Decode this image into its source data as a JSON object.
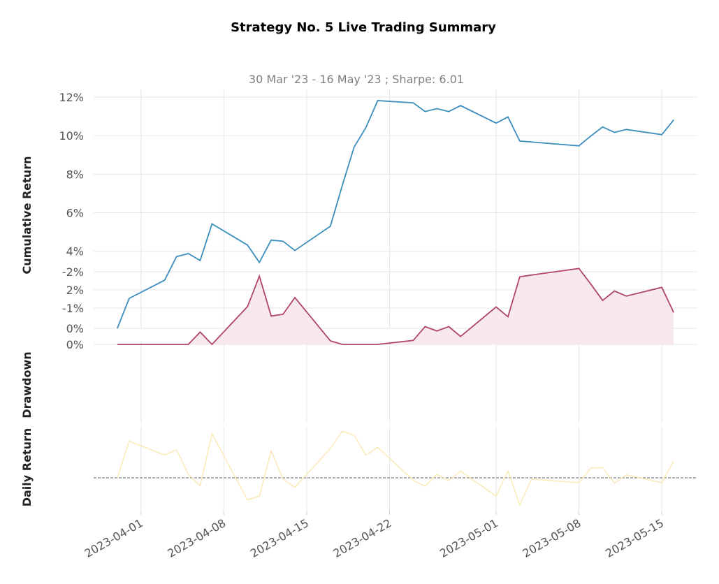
{
  "title": "Strategy No. 5 Live Trading Summary",
  "subtitle": "30 Mar '23 - 16 May '23 ;  Sharpe: 6.01",
  "colors": {
    "cumulative": "#3a8dbd",
    "drawdown": "#b04563",
    "drawdown_fill": "#f6e8ec",
    "daily": "#fbe5a6",
    "zero_line": "#808080"
  },
  "chart_data": [
    {
      "type": "line",
      "ylabel": "Cumulative Return",
      "yticks": [
        "0%",
        "2%",
        "4%",
        "6%",
        "8%",
        "10%",
        "12%"
      ],
      "ylim": [
        0,
        12.4
      ],
      "xticks": [
        "2023-04-01",
        "2023-04-08",
        "2023-04-15",
        "2023-04-22",
        "2023-05-01",
        "2023-05-08",
        "2023-05-15"
      ],
      "grid": true,
      "series": [
        {
          "x": [
            "2023-03-30",
            "2023-03-31",
            "2023-04-03",
            "2023-04-04",
            "2023-04-05",
            "2023-04-06",
            "2023-04-07",
            "2023-04-10",
            "2023-04-11",
            "2023-04-12",
            "2023-04-13",
            "2023-04-14",
            "2023-04-17",
            "2023-04-18",
            "2023-04-19",
            "2023-04-20",
            "2023-04-21",
            "2023-04-24",
            "2023-04-25",
            "2023-04-26",
            "2023-04-27",
            "2023-04-28",
            "2023-05-01",
            "2023-05-02",
            "2023-05-03",
            "2023-05-04",
            "2023-05-08",
            "2023-05-09",
            "2023-05-10",
            "2023-05-11",
            "2023-05-12",
            "2023-05-15",
            "2023-05-16"
          ],
          "y": [
            0.0,
            1.55,
            2.5,
            3.72,
            3.88,
            3.52,
            5.42,
            4.32,
            3.42,
            4.58,
            4.52,
            4.04,
            5.3,
            7.4,
            9.4,
            10.42,
            11.82,
            11.7,
            11.25,
            11.4,
            11.25,
            11.56,
            10.65,
            10.97,
            9.72,
            9.67,
            9.47,
            9.98,
            10.45,
            10.17,
            10.32,
            10.05,
            10.82
          ]
        }
      ]
    },
    {
      "type": "area",
      "ylabel": "Drawdown",
      "yticks": [
        "0%",
        "-1%",
        "-2%"
      ],
      "ylim": [
        -2.2,
        0
      ],
      "grid": true,
      "series": [
        {
          "x": [
            "2023-03-30",
            "2023-03-31",
            "2023-04-03",
            "2023-04-04",
            "2023-04-05",
            "2023-04-06",
            "2023-04-07",
            "2023-04-10",
            "2023-04-11",
            "2023-04-12",
            "2023-04-13",
            "2023-04-14",
            "2023-04-17",
            "2023-04-18",
            "2023-04-19",
            "2023-04-20",
            "2023-04-21",
            "2023-04-24",
            "2023-04-25",
            "2023-04-26",
            "2023-04-27",
            "2023-04-28",
            "2023-05-01",
            "2023-05-02",
            "2023-05-03",
            "2023-05-04",
            "2023-05-08",
            "2023-05-09",
            "2023-05-10",
            "2023-05-11",
            "2023-05-12",
            "2023-05-15",
            "2023-05-16"
          ],
          "y": [
            0.0,
            0.0,
            0.0,
            0.0,
            0.0,
            -0.34,
            0.0,
            -1.04,
            -1.88,
            -0.78,
            -0.83,
            -1.29,
            -0.1,
            0.0,
            0.0,
            0.0,
            0.0,
            -0.11,
            -0.49,
            -0.37,
            -0.49,
            -0.22,
            -1.03,
            -0.76,
            -1.86,
            -1.91,
            -2.09,
            -1.66,
            -1.21,
            -1.47,
            -1.33,
            -1.57,
            -0.88
          ]
        }
      ]
    },
    {
      "type": "line",
      "ylabel": "Daily Return",
      "ylim": [
        -0.9,
        1.6
      ],
      "zero_line": true,
      "grid": true,
      "series": [
        {
          "x": [
            "2023-03-30",
            "2023-03-31",
            "2023-04-03",
            "2023-04-04",
            "2023-04-05",
            "2023-04-06",
            "2023-04-07",
            "2023-04-10",
            "2023-04-11",
            "2023-04-12",
            "2023-04-13",
            "2023-04-14",
            "2023-04-17",
            "2023-04-18",
            "2023-04-19",
            "2023-04-20",
            "2023-04-21",
            "2023-04-24",
            "2023-04-25",
            "2023-04-26",
            "2023-04-27",
            "2023-04-28",
            "2023-05-01",
            "2023-05-02",
            "2023-05-03",
            "2023-05-04",
            "2023-05-08",
            "2023-05-09",
            "2023-05-10",
            "2023-05-11",
            "2023-05-12",
            "2023-05-15",
            "2023-05-16"
          ],
          "y": [
            0.0,
            1.5,
            0.93,
            1.15,
            0.15,
            -0.33,
            1.8,
            -0.9,
            -0.76,
            1.1,
            -0.05,
            -0.39,
            1.2,
            1.9,
            1.75,
            0.92,
            1.25,
            -0.1,
            -0.35,
            0.14,
            -0.12,
            0.27,
            -0.75,
            0.28,
            -1.1,
            -0.05,
            -0.2,
            0.4,
            0.42,
            -0.22,
            0.12,
            -0.2,
            0.68
          ]
        }
      ]
    }
  ]
}
